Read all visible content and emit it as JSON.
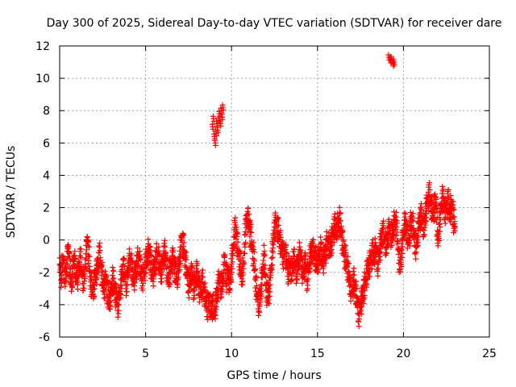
{
  "chart_data": {
    "type": "scatter",
    "title": "Day 300 of 2025, Sidereal Day-to-day VTEC variation (SDTVAR) for receiver dare",
    "xlabel": "GPS time / hours",
    "ylabel": "SDTVAR / TECUs",
    "xlim": [
      0,
      25
    ],
    "ylim": [
      -6,
      12
    ],
    "x_ticks": [
      0,
      5,
      10,
      15,
      20,
      25
    ],
    "y_ticks": [
      -6,
      -4,
      -2,
      0,
      2,
      4,
      6,
      8,
      10,
      12
    ],
    "grid": true,
    "marker": "+",
    "series_color": "#ff0000",
    "series": [
      {
        "name": "SDTVAR",
        "x": [
          0.0,
          0.1,
          0.2,
          0.3,
          0.4,
          0.5,
          0.6,
          0.7,
          0.8,
          0.9,
          1.0,
          1.1,
          1.2,
          1.3,
          1.4,
          1.5,
          1.6,
          1.7,
          1.8,
          1.9,
          2.0,
          2.1,
          2.2,
          2.3,
          2.4,
          2.5,
          2.6,
          2.7,
          2.8,
          2.9,
          3.0,
          3.1,
          3.2,
          3.3,
          3.4,
          3.5,
          3.6,
          3.7,
          3.8,
          3.9,
          4.0,
          4.1,
          4.2,
          4.3,
          4.4,
          4.5,
          4.6,
          4.7,
          4.8,
          4.9,
          5.0,
          5.1,
          5.2,
          5.3,
          5.4,
          5.5,
          5.6,
          5.7,
          5.8,
          5.9,
          6.0,
          6.1,
          6.2,
          6.3,
          6.4,
          6.5,
          6.6,
          6.7,
          6.8,
          6.9,
          7.0,
          7.1,
          7.2,
          7.3,
          7.4,
          7.5,
          7.6,
          7.7,
          7.8,
          7.9,
          8.0,
          8.1,
          8.2,
          8.3,
          8.4,
          8.5,
          8.6,
          8.7,
          8.8,
          8.9,
          9.0,
          9.1,
          9.2,
          9.3,
          9.4,
          9.5,
          9.6,
          9.7,
          9.8,
          9.9,
          10.0,
          10.1,
          10.2,
          10.3,
          10.4,
          10.5,
          10.6,
          10.7,
          10.8,
          10.9,
          11.0,
          11.1,
          11.2,
          11.3,
          11.4,
          11.5,
          11.6,
          11.7,
          11.8,
          11.9,
          12.0,
          12.1,
          12.2,
          12.3,
          12.4,
          12.5,
          12.6,
          12.7,
          12.8,
          12.9,
          13.0,
          13.1,
          13.2,
          13.3,
          13.4,
          13.5,
          13.6,
          13.7,
          13.8,
          13.9,
          14.0,
          14.1,
          14.2,
          14.3,
          14.4,
          14.5,
          14.6,
          14.7,
          14.8,
          14.9,
          15.0,
          15.1,
          15.2,
          15.3,
          15.4,
          15.5,
          15.6,
          15.7,
          15.8,
          15.9,
          16.0,
          16.1,
          16.2,
          16.3,
          16.4,
          16.5,
          16.6,
          16.7,
          16.8,
          16.9,
          17.0,
          17.1,
          17.2,
          17.3,
          17.4,
          17.5,
          17.6,
          17.7,
          17.8,
          17.9,
          18.0,
          18.1,
          18.2,
          18.3,
          18.4,
          18.5,
          18.6,
          18.7,
          18.8,
          18.9,
          19.0,
          19.1,
          19.2,
          19.3,
          19.4,
          19.5,
          19.6,
          19.7,
          19.8,
          19.9,
          20.0,
          20.1,
          20.2,
          20.3,
          20.4,
          20.5,
          20.6,
          20.7,
          20.8,
          20.9,
          21.0,
          21.1,
          21.2,
          21.3,
          21.4,
          21.5,
          21.6,
          21.7,
          21.8,
          21.9,
          22.0,
          22.1,
          22.2,
          22.3,
          22.4,
          22.5,
          22.6,
          22.7,
          22.8,
          22.9,
          23.0
        ],
        "y": [
          -1.5,
          -2.2,
          -1.0,
          -2.5,
          -1.8,
          -0.3,
          -2.0,
          -2.8,
          -1.2,
          -1.6,
          -2.4,
          -2.0,
          -1.0,
          -2.2,
          -2.7,
          -1.5,
          0.2,
          -1.0,
          -2.6,
          -3.2,
          -2.8,
          -2.0,
          -1.8,
          -0.8,
          -1.5,
          -2.6,
          -3.0,
          -2.2,
          -3.5,
          -3.8,
          -3.2,
          -2.4,
          -3.0,
          -3.6,
          -4.0,
          -3.3,
          -2.5,
          -1.5,
          -2.2,
          -2.8,
          -1.6,
          -1.2,
          -1.8,
          -2.5,
          -2.0,
          -1.5,
          -1.0,
          -1.8,
          -2.4,
          -2.0,
          -1.5,
          -1.0,
          -0.6,
          -1.4,
          -2.2,
          -1.8,
          -1.2,
          -0.8,
          -1.5,
          -2.0,
          -1.3,
          -0.8,
          -1.2,
          -2.6,
          -2.0,
          -1.5,
          -1.0,
          -1.8,
          -2.5,
          -2.0,
          -1.0,
          0.2,
          -0.4,
          -1.2,
          -2.0,
          -2.8,
          -2.4,
          -2.0,
          -3.0,
          -2.5,
          -2.0,
          -2.8,
          -3.4,
          -2.6,
          -3.2,
          -3.8,
          -4.2,
          -3.5,
          -4.4,
          -4.0,
          -4.6,
          -3.8,
          -3.0,
          -2.2,
          -3.0,
          -2.5,
          -1.0,
          -2.5,
          -1.8,
          -3.0,
          -1.5,
          -0.5,
          0.8,
          0.2,
          -0.8,
          -1.5,
          -2.4,
          -1.5,
          0.5,
          1.5,
          1.2,
          0.5,
          -0.6,
          -1.2,
          -2.5,
          -3.5,
          -4.0,
          -3.2,
          -2.0,
          -1.0,
          -2.8,
          -3.6,
          -3.0,
          -1.8,
          -0.5,
          0.8,
          1.2,
          0.6,
          0.0,
          -0.5,
          -1.0,
          -0.6,
          -1.2,
          -2.0,
          -1.5,
          -2.2,
          -1.0,
          -1.5,
          -2.0,
          -1.2,
          -0.8,
          -1.8,
          -2.0,
          -1.2,
          -2.5,
          -1.6,
          -1.0,
          -0.5,
          -0.8,
          -1.2,
          -1.5,
          -1.0,
          -0.6,
          -1.4,
          -1.0,
          -0.5,
          0.0,
          -0.6,
          -0.2,
          0.5,
          0.8,
          0.6,
          1.0,
          1.2,
          0.5,
          -0.5,
          -1.0,
          -1.6,
          -2.0,
          -2.8,
          -3.2,
          -2.5,
          -3.0,
          -3.8,
          -4.6,
          -4.0,
          -3.5,
          -3.0,
          -2.5,
          -2.0,
          -1.5,
          -1.2,
          -0.8,
          -1.0,
          -0.5,
          -1.5,
          -0.8,
          0.0,
          0.5,
          0.0,
          -0.5,
          0.4,
          0.8,
          0.2,
          0.6,
          1.2,
          0.8,
          -0.5,
          -1.8,
          -0.6,
          0.5,
          1.0,
          0.6,
          -0.2,
          0.8,
          1.2,
          0.4,
          -0.4,
          0.0,
          1.0,
          1.5,
          1.2,
          0.6,
          1.8,
          2.4,
          2.8,
          2.2,
          1.5,
          2.0,
          2.5,
          -0.2,
          1.0,
          2.2,
          2.6,
          1.8,
          2.0,
          2.4,
          1.6,
          2.2,
          1.4,
          0.8
        ],
        "x_extra": [
          8.9,
          8.95,
          9.0,
          9.05,
          9.1,
          9.15,
          9.2,
          9.25,
          9.3,
          9.35,
          9.4,
          9.45,
          9.5,
          19.15,
          19.25,
          19.3,
          19.4,
          19.45
        ],
        "y_extra": [
          7.0,
          7.5,
          6.4,
          6.0,
          6.6,
          7.2,
          6.8,
          7.4,
          7.8,
          7.2,
          8.0,
          7.6,
          8.2,
          11.3,
          11.1,
          11.2,
          10.9,
          11.0
        ]
      }
    ]
  }
}
